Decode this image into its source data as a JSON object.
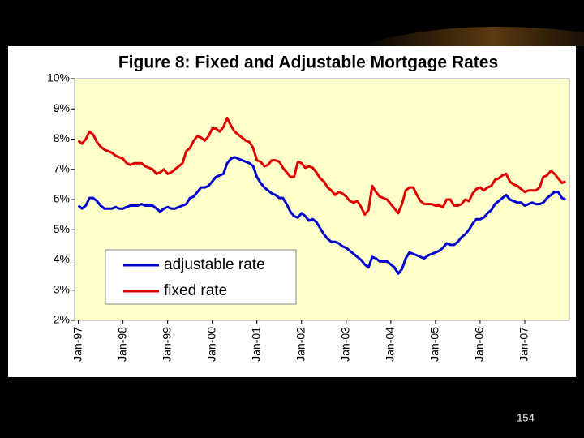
{
  "chart_data": {
    "type": "line",
    "title": "Figure 8: Fixed and Adjustable Mortgage Rates",
    "page_number": "154",
    "categories": [
      "Jan-97",
      null,
      null,
      null,
      null,
      null,
      null,
      null,
      null,
      null,
      null,
      null,
      "Jan-98",
      null,
      null,
      null,
      null,
      null,
      null,
      null,
      null,
      null,
      null,
      null,
      "Jan-99",
      null,
      null,
      null,
      null,
      null,
      null,
      null,
      null,
      null,
      null,
      null,
      "Jan-00",
      null,
      null,
      null,
      null,
      null,
      null,
      null,
      null,
      null,
      null,
      null,
      "Jan-01",
      null,
      null,
      null,
      null,
      null,
      null,
      null,
      null,
      null,
      null,
      null,
      "Jan-02",
      null,
      null,
      null,
      null,
      null,
      null,
      null,
      null,
      null,
      null,
      null,
      "Jan-03",
      null,
      null,
      null,
      null,
      null,
      null,
      null,
      null,
      null,
      null,
      null,
      "Jan-04",
      null,
      null,
      null,
      null,
      null,
      null,
      null,
      null,
      null,
      null,
      null,
      "Jan-05",
      null,
      null,
      null,
      null,
      null,
      null,
      null,
      null,
      null,
      null,
      null,
      "Jan-06",
      null,
      null,
      null,
      null,
      null,
      null,
      null,
      null,
      null,
      null,
      null,
      "Jan-07",
      null,
      null,
      null,
      null,
      null,
      null,
      null,
      null,
      null,
      null,
      null
    ],
    "series": [
      {
        "name": "adjustable rate",
        "color": "#0000cc",
        "values": [
          5.8,
          5.7,
          5.8,
          6.05,
          6.05,
          5.95,
          5.8,
          5.7,
          5.7,
          5.7,
          5.75,
          5.7,
          5.7,
          5.75,
          5.8,
          5.8,
          5.8,
          5.85,
          5.8,
          5.8,
          5.8,
          5.7,
          5.6,
          5.7,
          5.75,
          5.7,
          5.7,
          5.75,
          5.8,
          5.85,
          6.05,
          6.1,
          6.25,
          6.4,
          6.4,
          6.45,
          6.6,
          6.75,
          6.8,
          6.85,
          7.2,
          7.35,
          7.4,
          7.35,
          7.3,
          7.25,
          7.2,
          7.1,
          6.75,
          6.55,
          6.4,
          6.3,
          6.2,
          6.15,
          6.05,
          6.05,
          5.85,
          5.6,
          5.45,
          5.4,
          5.55,
          5.45,
          5.3,
          5.35,
          5.25,
          5.05,
          4.85,
          4.7,
          4.6,
          4.6,
          4.55,
          4.45,
          4.4,
          4.3,
          4.2,
          4.1,
          4.0,
          3.85,
          3.75,
          4.1,
          4.05,
          3.95,
          3.95,
          3.95,
          3.85,
          3.75,
          3.55,
          3.7,
          4.05,
          4.25,
          4.2,
          4.15,
          4.1,
          4.05,
          4.15,
          4.2,
          4.25,
          4.3,
          4.4,
          4.55,
          4.5,
          4.5,
          4.6,
          4.75,
          4.85,
          5.0,
          5.2,
          5.35,
          5.35,
          5.4,
          5.55,
          5.65,
          5.85,
          5.95,
          6.05,
          6.15,
          6.0,
          5.95,
          5.9,
          5.9,
          5.8,
          5.85,
          5.9,
          5.85,
          5.85,
          5.9,
          6.05,
          6.15,
          6.25,
          6.25,
          6.05,
          6.0
        ]
      },
      {
        "name": "fixed rate",
        "color": "#dd0000",
        "values": [
          7.95,
          7.85,
          8.0,
          8.25,
          8.15,
          7.9,
          7.75,
          7.65,
          7.6,
          7.55,
          7.45,
          7.4,
          7.35,
          7.2,
          7.15,
          7.2,
          7.2,
          7.2,
          7.1,
          7.05,
          7.0,
          6.85,
          6.9,
          7.0,
          6.85,
          6.9,
          7.0,
          7.1,
          7.2,
          7.6,
          7.7,
          7.95,
          8.1,
          8.05,
          7.95,
          8.1,
          8.35,
          8.35,
          8.25,
          8.4,
          8.7,
          8.45,
          8.25,
          8.15,
          8.05,
          7.95,
          7.9,
          7.7,
          7.3,
          7.25,
          7.1,
          7.15,
          7.3,
          7.3,
          7.25,
          7.05,
          6.9,
          6.75,
          6.75,
          7.25,
          7.2,
          7.05,
          7.1,
          7.05,
          6.9,
          6.7,
          6.6,
          6.4,
          6.3,
          6.15,
          6.25,
          6.2,
          6.1,
          5.95,
          5.9,
          5.95,
          5.75,
          5.5,
          5.65,
          6.45,
          6.25,
          6.1,
          6.05,
          6.0,
          5.85,
          5.7,
          5.55,
          5.85,
          6.3,
          6.4,
          6.4,
          6.15,
          5.95,
          5.85,
          5.85,
          5.85,
          5.8,
          5.8,
          5.75,
          6.0,
          6.0,
          5.8,
          5.8,
          5.85,
          6.0,
          5.95,
          6.2,
          6.35,
          6.4,
          6.3,
          6.4,
          6.45,
          6.65,
          6.7,
          6.8,
          6.85,
          6.6,
          6.5,
          6.45,
          6.35,
          6.25,
          6.3,
          6.3,
          6.3,
          6.4,
          6.75,
          6.8,
          6.95,
          6.85,
          6.7,
          6.55,
          6.6
        ]
      }
    ],
    "ylim": [
      2,
      10
    ],
    "yticks": [
      {
        "value": 2,
        "label": "2%"
      },
      {
        "value": 3,
        "label": "3%"
      },
      {
        "value": 4,
        "label": "4%"
      },
      {
        "value": 5,
        "label": "5%"
      },
      {
        "value": 6,
        "label": "6%"
      },
      {
        "value": 7,
        "label": "7%"
      },
      {
        "value": 8,
        "label": "8%"
      },
      {
        "value": 9,
        "label": "9%"
      },
      {
        "value": 10,
        "label": "10%"
      }
    ],
    "grid": false,
    "legend": "lower-left"
  }
}
